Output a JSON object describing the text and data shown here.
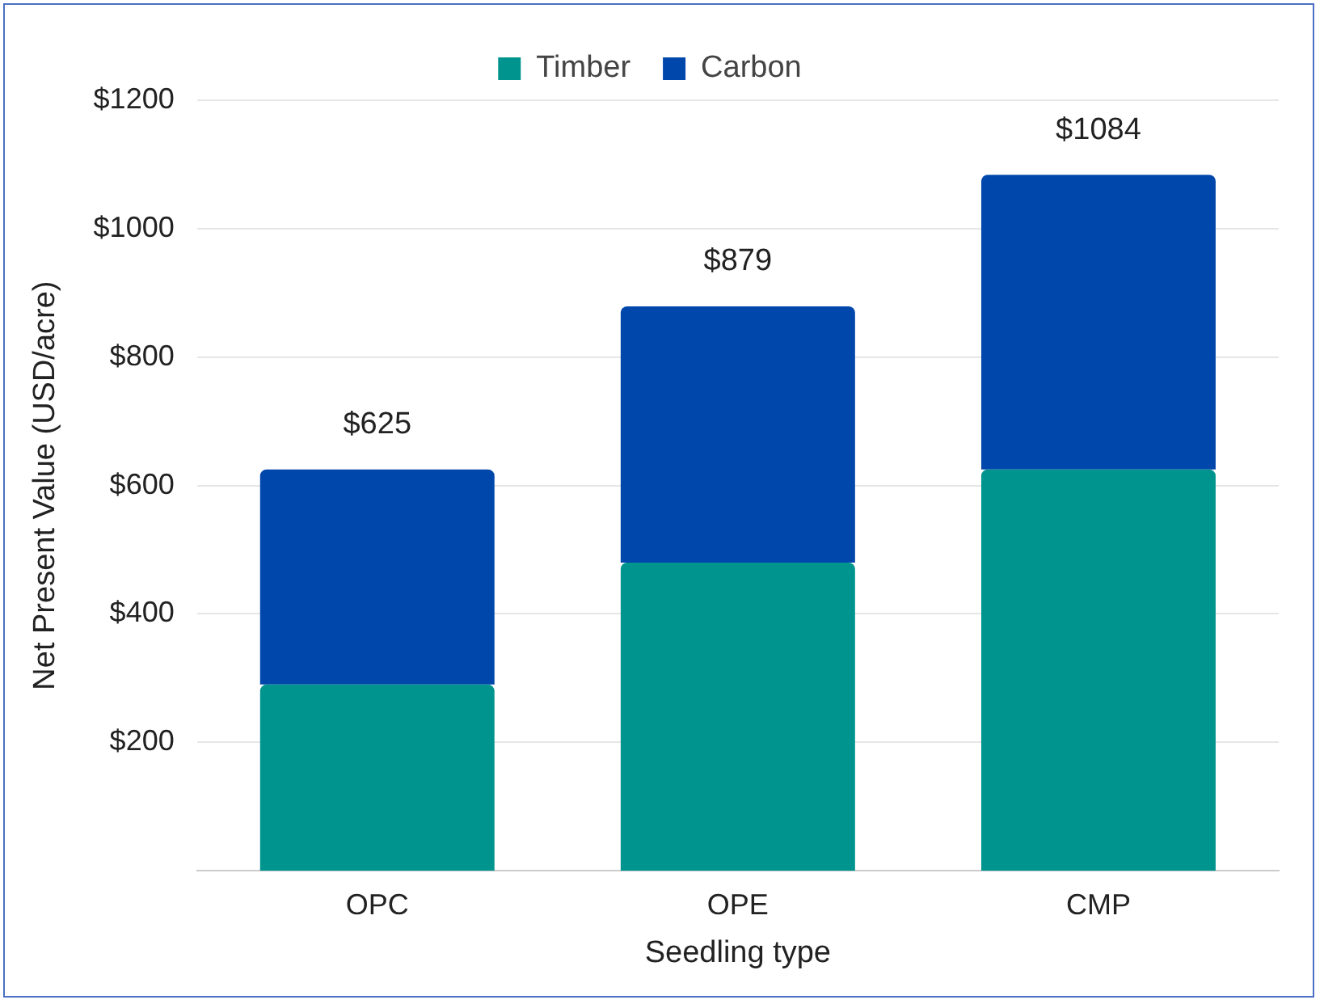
{
  "chart_data": {
    "type": "bar",
    "stacked": true,
    "xlabel": "Seedling type",
    "ylabel": "Net Present Value (USD/acre)",
    "categories": [
      "OPC",
      "OPE",
      "CMP"
    ],
    "series": [
      {
        "name": "Timber",
        "color": "#00948f",
        "values": [
          290,
          480,
          625
        ]
      },
      {
        "name": "Carbon",
        "color": "#0047ab",
        "values": [
          335,
          399,
          459
        ]
      }
    ],
    "totals": [
      "$625",
      "$879",
      "$1084"
    ],
    "ylim": [
      0,
      1200
    ],
    "yticks": [
      {
        "value": 200,
        "label": "$200"
      },
      {
        "value": 400,
        "label": "$400"
      },
      {
        "value": 600,
        "label": "$600"
      },
      {
        "value": 800,
        "label": "$800"
      },
      {
        "value": 1000,
        "label": "$1000"
      },
      {
        "value": 1200,
        "label": "$1200"
      }
    ],
    "grid": "y",
    "legend": "top"
  }
}
